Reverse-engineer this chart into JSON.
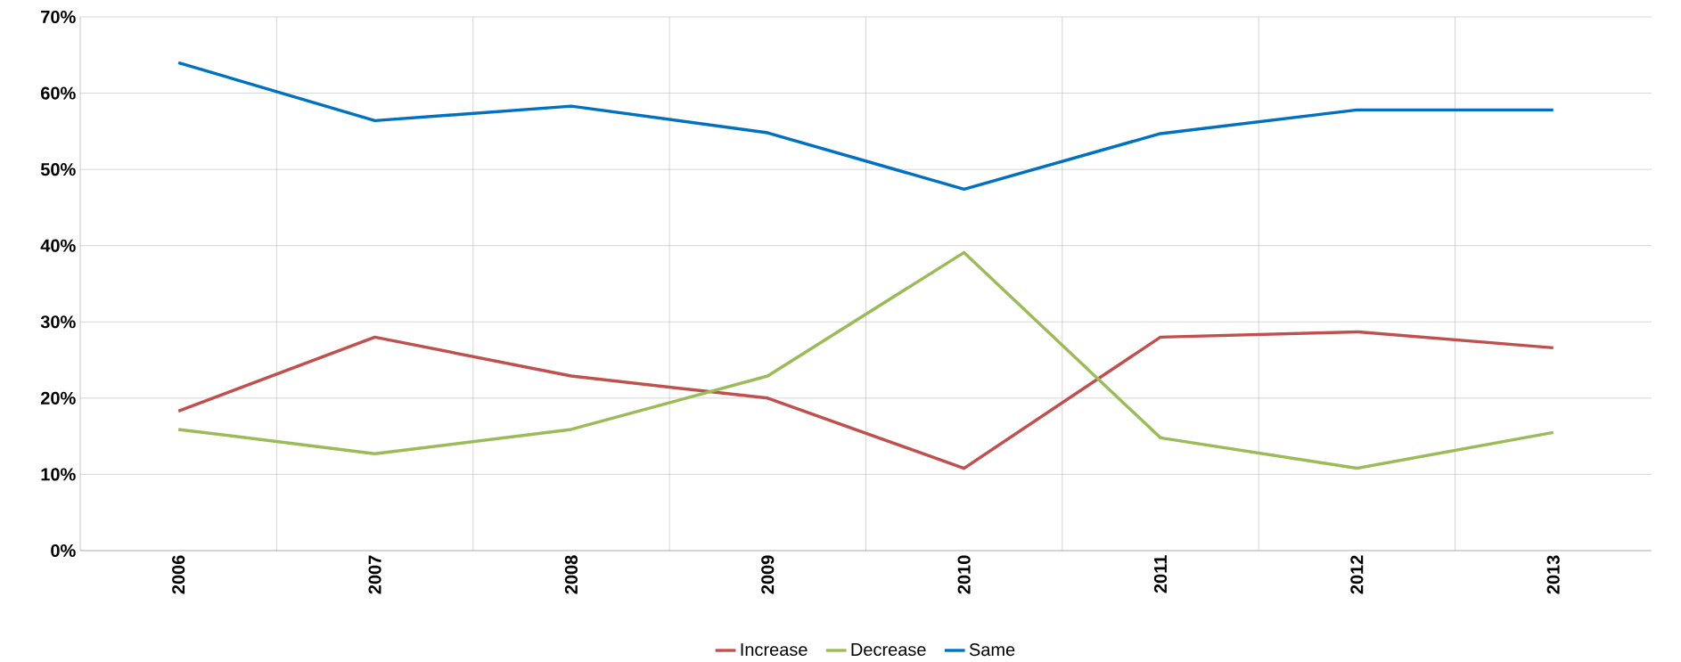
{
  "chart_data": {
    "type": "line",
    "categories": [
      "2006",
      "2007",
      "2008",
      "2009",
      "2010",
      "2011",
      "2012",
      "2013"
    ],
    "series": [
      {
        "name": "Increase",
        "color": "#c0504d",
        "values": [
          18.3,
          28.0,
          22.9,
          20.0,
          10.8,
          28.0,
          28.7,
          26.6
        ]
      },
      {
        "name": "Decrease",
        "color": "#9bbb59",
        "values": [
          15.9,
          12.7,
          15.9,
          22.9,
          39.1,
          14.8,
          10.8,
          15.5
        ]
      },
      {
        "name": "Same",
        "color": "#0070c0",
        "values": [
          64.0,
          56.4,
          58.3,
          54.8,
          47.4,
          54.7,
          57.8,
          57.8
        ]
      }
    ],
    "ylim": [
      0,
      70
    ],
    "yticks": [
      {
        "value": 0,
        "label": "0%"
      },
      {
        "value": 10,
        "label": "10%"
      },
      {
        "value": 20,
        "label": "20%"
      },
      {
        "value": 30,
        "label": "30%"
      },
      {
        "value": 40,
        "label": "40%"
      },
      {
        "value": 50,
        "label": "50%"
      },
      {
        "value": 60,
        "label": "60%"
      },
      {
        "value": 70,
        "label": "70%"
      }
    ],
    "grid": true,
    "legend": "bottom",
    "marker": "none",
    "line_style": "solid"
  }
}
